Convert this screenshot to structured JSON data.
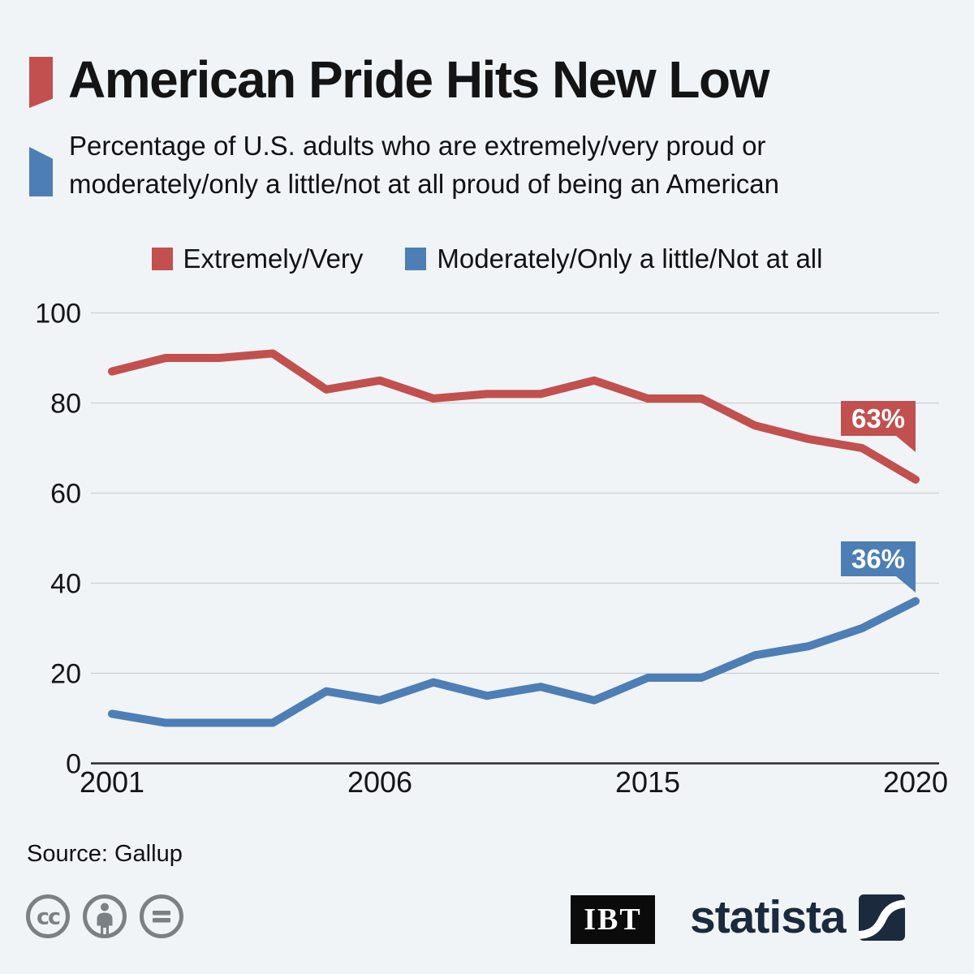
{
  "page": {
    "background": "#f0f4f7"
  },
  "header": {
    "title": "American Pride Hits New Low",
    "subtitle": "Percentage of U.S. adults who are extremely/very proud or moderately/only a little/not at all proud of being an American",
    "title_marker_color": "#c1504f",
    "subtitle_marker_color": "#4d7eb6"
  },
  "legend": {
    "items": [
      {
        "label": "Extremely/Very",
        "color": "#c1504f"
      },
      {
        "label": "Moderately/Only a little/Not at all",
        "color": "#4d7eb6"
      }
    ]
  },
  "chart_data": {
    "type": "line",
    "title": "American Pride Hits New Low",
    "x": [
      2001,
      2002,
      2003,
      2004,
      2005,
      2006,
      2007,
      2008,
      2010,
      2013,
      2015,
      2016,
      2017,
      2018,
      2019,
      2020
    ],
    "x_tick_labels": [
      "2001",
      "2006",
      "2015",
      "2020"
    ],
    "ylim": [
      0,
      100
    ],
    "yticks": [
      0,
      20,
      40,
      60,
      80,
      100
    ],
    "grid": true,
    "legend_position": "top",
    "series": [
      {
        "name": "Extremely/Very",
        "color": "#c1504f",
        "values": [
          87,
          90,
          90,
          91,
          83,
          85,
          81,
          82,
          82,
          85,
          81,
          81,
          75,
          72,
          70,
          63
        ],
        "end_label": "63%"
      },
      {
        "name": "Moderately/Only a little/Not at all",
        "color": "#4d7eb6",
        "values": [
          11,
          9,
          9,
          9,
          16,
          14,
          18,
          15,
          17,
          14,
          19,
          19,
          24,
          26,
          30,
          36
        ],
        "end_label": "36%"
      }
    ]
  },
  "footer": {
    "source": "Source: Gallup",
    "license_icons": [
      "cc-icon",
      "attribution-icon",
      "no-derivatives-icon"
    ],
    "ibt_logo_text": "IBT",
    "statista_logo_text": "statista"
  }
}
